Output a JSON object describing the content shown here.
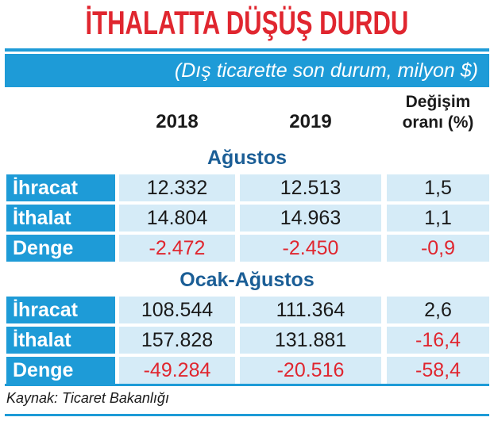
{
  "header": {
    "title": "İTHALATTA DÜŞÜŞ DURDU",
    "subtitle": "(Dış ticarette son durum, milyon $)"
  },
  "table": {
    "columns": [
      "2018",
      "2019",
      "Değişim oranı (%)"
    ],
    "sections": [
      {
        "name": "Ağustos",
        "rows": [
          {
            "label": "İhracat",
            "cells": [
              "12.332",
              "12.513",
              "1,5"
            ]
          },
          {
            "label": "İthalat",
            "cells": [
              "14.804",
              "14.963",
              "1,1"
            ]
          },
          {
            "label": "Denge",
            "cells": [
              "-2.472",
              "-2.450",
              "-0,9"
            ]
          }
        ]
      },
      {
        "name": "Ocak-Ağustos",
        "rows": [
          {
            "label": "İhracat",
            "cells": [
              "108.544",
              "111.364",
              "2,6"
            ]
          },
          {
            "label": "İthalat",
            "cells": [
              "157.828",
              "131.881",
              "-16,4"
            ]
          },
          {
            "label": "Denge",
            "cells": [
              "-49.284",
              "-20.516",
              "-58,4"
            ]
          }
        ]
      }
    ]
  },
  "footer": {
    "source": "Kaynak: Ticaret Bakanlığı"
  }
}
